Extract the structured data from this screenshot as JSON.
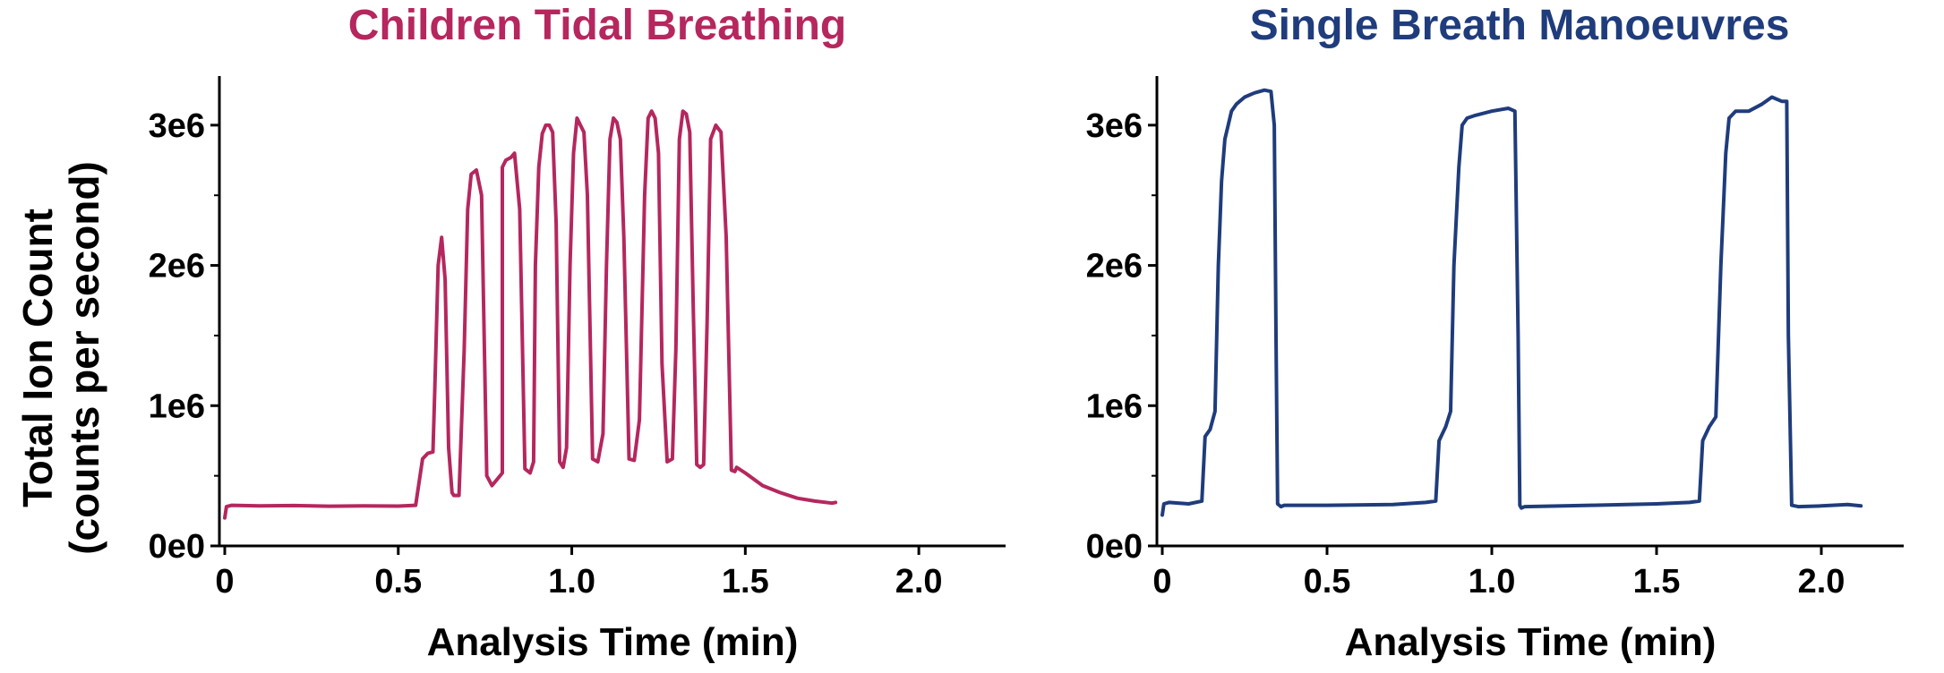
{
  "shared": {
    "ylabel_line1": "Total Ion Count",
    "ylabel_line2": "(counts per second)"
  },
  "chart_data": [
    {
      "type": "line",
      "title": "Children Tidal Breathing",
      "xlabel": "Analysis Time (min)",
      "ylabel": "Total Ion Count (counts per second)",
      "xlim": [
        0,
        2.25
      ],
      "ylim": [
        0,
        3350000
      ],
      "x_ticks": [
        0,
        0.5,
        1.0,
        1.5,
        2.0
      ],
      "x_tick_labels": [
        "0",
        "0.5",
        "1.0",
        "1.5",
        "2.0"
      ],
      "y_ticks": [
        0,
        1000000,
        2000000,
        3000000
      ],
      "y_tick_labels": [
        "0e0",
        "1e6",
        "2e6",
        "3e6"
      ],
      "y_minor_ticks": [
        500000,
        1500000,
        2500000
      ],
      "grid": false,
      "legend": "none",
      "color": "#B5275E",
      "series": [
        {
          "x": [
            0,
            0.005,
            0.02,
            0.1,
            0.2,
            0.3,
            0.4,
            0.5,
            0.55,
            0.57,
            0.585,
            0.6,
            0.605,
            0.615,
            0.625,
            0.635,
            0.645,
            0.655,
            0.66,
            0.675,
            0.69,
            0.7,
            0.71,
            0.725,
            0.74,
            0.755,
            0.77,
            0.8,
            0.8,
            0.81,
            0.825,
            0.835,
            0.85,
            0.865,
            0.88,
            0.89,
            0.895,
            0.905,
            0.915,
            0.925,
            0.935,
            0.945,
            0.955,
            0.965,
            0.975,
            0.985,
            0.995,
            1.005,
            1.015,
            1.025,
            1.035,
            1.045,
            1.06,
            1.075,
            1.09,
            1.1,
            1.11,
            1.12,
            1.13,
            1.14,
            1.15,
            1.165,
            1.18,
            1.195,
            1.21,
            1.22,
            1.23,
            1.24,
            1.25,
            1.26,
            1.275,
            1.29,
            1.3,
            1.31,
            1.32,
            1.33,
            1.34,
            1.35,
            1.36,
            1.37,
            1.38,
            1.39,
            1.4,
            1.415,
            1.43,
            1.445,
            1.46,
            1.47,
            1.475,
            1.5,
            1.55,
            1.6,
            1.65,
            1.7,
            1.75,
            1.76
          ],
          "y": [
            200000,
            280000,
            290000,
            285000,
            288000,
            283000,
            286000,
            284000,
            290000,
            620000,
            660000,
            670000,
            1100000,
            2000000,
            2200000,
            1900000,
            700000,
            380000,
            360000,
            360000,
            1400000,
            2400000,
            2650000,
            2680000,
            2500000,
            500000,
            430000,
            520000,
            2700000,
            2750000,
            2770000,
            2800000,
            2400000,
            550000,
            520000,
            600000,
            2000000,
            2700000,
            2940000,
            3000000,
            3000000,
            2950000,
            2300000,
            600000,
            560000,
            700000,
            2000000,
            2800000,
            3050000,
            3000000,
            2950000,
            2500000,
            620000,
            600000,
            800000,
            2000000,
            2900000,
            3050000,
            3020000,
            2900000,
            2200000,
            620000,
            610000,
            900000,
            2500000,
            3050000,
            3100000,
            3050000,
            2800000,
            1300000,
            600000,
            620000,
            1400000,
            2900000,
            3100000,
            3080000,
            2950000,
            1700000,
            580000,
            560000,
            580000,
            1600000,
            2900000,
            3000000,
            2950000,
            2200000,
            540000,
            530000,
            560000,
            520000,
            430000,
            380000,
            340000,
            320000,
            305000,
            310000
          ]
        }
      ]
    },
    {
      "type": "line",
      "title": "Single Breath Manoeuvres",
      "xlabel": "Analysis Time (min)",
      "ylabel": "Total Ion Count (counts per second)",
      "xlim": [
        0,
        2.25
      ],
      "ylim": [
        0,
        3350000
      ],
      "x_ticks": [
        0,
        0.5,
        1.0,
        1.5,
        2.0
      ],
      "x_tick_labels": [
        "0",
        "0.5",
        "1.0",
        "1.5",
        "2.0"
      ],
      "y_ticks": [
        0,
        1000000,
        2000000,
        3000000
      ],
      "y_tick_labels": [
        "0e0",
        "1e6",
        "2e6",
        "3e6"
      ],
      "y_minor_ticks": [
        500000,
        1500000,
        2500000
      ],
      "grid": false,
      "legend": "none",
      "color": "#1F3C7C",
      "series": [
        {
          "x": [
            0,
            0.005,
            0.02,
            0.08,
            0.12,
            0.13,
            0.145,
            0.16,
            0.17,
            0.18,
            0.19,
            0.2,
            0.21,
            0.225,
            0.25,
            0.28,
            0.31,
            0.33,
            0.34,
            0.345,
            0.35,
            0.36,
            0.37,
            0.5,
            0.7,
            0.8,
            0.83,
            0.84,
            0.86,
            0.875,
            0.885,
            0.9,
            0.91,
            0.925,
            0.95,
            1.0,
            1.05,
            1.07,
            1.08,
            1.085,
            1.09,
            1.1,
            1.3,
            1.5,
            1.6,
            1.63,
            1.64,
            1.66,
            1.68,
            1.695,
            1.71,
            1.72,
            1.74,
            1.78,
            1.82,
            1.85,
            1.88,
            1.895,
            1.9,
            1.91,
            1.93,
            2.0,
            2.08,
            2.12
          ],
          "y": [
            220000,
            300000,
            310000,
            300000,
            320000,
            780000,
            830000,
            960000,
            2000000,
            2600000,
            2900000,
            3000000,
            3100000,
            3150000,
            3200000,
            3230000,
            3250000,
            3240000,
            3000000,
            1500000,
            300000,
            280000,
            290000,
            290000,
            295000,
            310000,
            320000,
            750000,
            850000,
            960000,
            2000000,
            2700000,
            3000000,
            3050000,
            3070000,
            3100000,
            3120000,
            3100000,
            1500000,
            290000,
            270000,
            280000,
            290000,
            300000,
            310000,
            320000,
            750000,
            850000,
            920000,
            2000000,
            2800000,
            3050000,
            3100000,
            3100000,
            3150000,
            3200000,
            3170000,
            3170000,
            1500000,
            290000,
            280000,
            285000,
            295000,
            285000
          ]
        }
      ]
    }
  ]
}
